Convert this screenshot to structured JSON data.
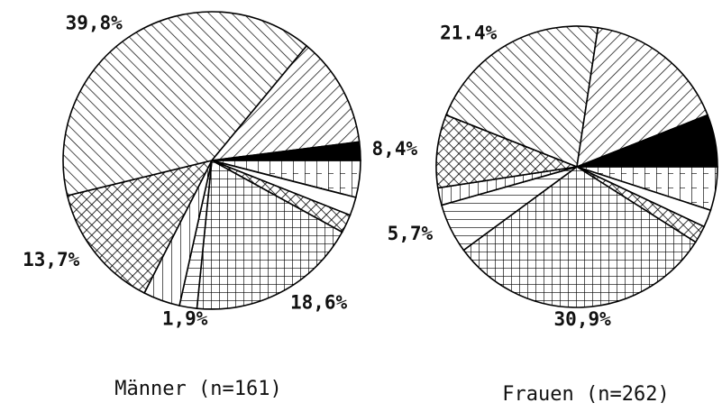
{
  "chart_data": [
    {
      "type": "pie",
      "title": "Männer (n=161)",
      "values": [
        4,
        2,
        2,
        18.6,
        1.9,
        4,
        13.7,
        39.8,
        12,
        2
      ],
      "value_labels": [
        null,
        null,
        null,
        "18,6%",
        "1,9%",
        null,
        "13,7%",
        "39,8%",
        null,
        null
      ],
      "patterns": [
        "vgrid",
        "white",
        "cross",
        "grid",
        "hlines",
        "vlines",
        "cross",
        "diagL",
        "diagR",
        "black"
      ]
    },
    {
      "type": "pie",
      "title": "Frauen (n=262)",
      "values": [
        5,
        2,
        2,
        30.9,
        5.7,
        2,
        8.4,
        21.4,
        16.6,
        6
      ],
      "value_labels": [
        null,
        null,
        null,
        "30,9%",
        "5,7%",
        null,
        "8,4%",
        "21.4%",
        null,
        null
      ],
      "patterns": [
        "vgrid",
        "white",
        "cross",
        "grid",
        "hlines",
        "vlines",
        "cross",
        "diagL",
        "diagR",
        "black"
      ]
    }
  ]
}
